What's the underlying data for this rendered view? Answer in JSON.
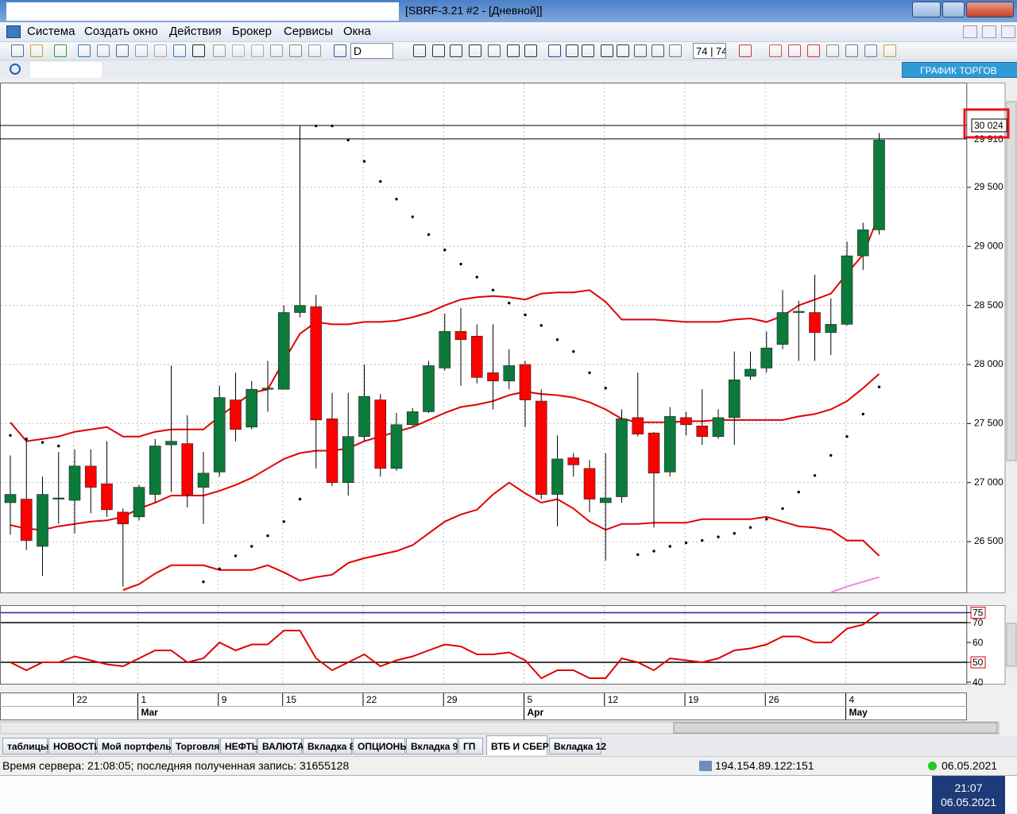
{
  "window": {
    "title": "[SBRF-3.21 #2 - [Дневной]]"
  },
  "menu": [
    "Система",
    "Создать окно",
    "Действия",
    "Брокер",
    "Сервисы",
    "Окна"
  ],
  "toolbar": {
    "interval": "D",
    "counter": "74 | 74"
  },
  "search_button": "ГРАФИК ТОРГОВ",
  "tabs": [
    "таблицы",
    "НОВОСТИ",
    "Мой портфель",
    "Торговля",
    "НЕФТЬ",
    "ВАЛЮТА",
    "Вкладка 8",
    "ОПЦИОНЫ",
    "Вкладка 9",
    "ГП",
    "ВТБ И СБЕР",
    "Вкладка 12"
  ],
  "active_tab": 10,
  "status": {
    "server": "Время сервера: 21:08:05; последняя полученная запись: 31655128",
    "address": "194.154.89.122:151",
    "date": "06.05.2021"
  },
  "taskbar": {
    "time": "21:07",
    "date": "06.05.2021"
  },
  "chart_data": [
    {
      "type": "candlestick",
      "categories": [
        null,
        null,
        null,
        null,
        "22",
        null,
        null,
        null,
        "1",
        null,
        null,
        null,
        null,
        "9",
        null,
        null,
        null,
        "15",
        null,
        null,
        null,
        null,
        "22",
        null,
        null,
        null,
        null,
        "29",
        null,
        null,
        null,
        null,
        "5",
        null,
        null,
        null,
        null,
        "12",
        null,
        null,
        null,
        null,
        "19",
        null,
        null,
        null,
        null,
        "26",
        null,
        null,
        null,
        null,
        "4",
        null,
        null
      ],
      "months": [
        null,
        null,
        null,
        null,
        null,
        null,
        null,
        null,
        "Mar",
        null,
        null,
        null,
        null,
        null,
        null,
        null,
        null,
        null,
        null,
        null,
        null,
        null,
        null,
        null,
        null,
        null,
        null,
        null,
        null,
        null,
        null,
        null,
        "Apr",
        null,
        null,
        null,
        null,
        null,
        null,
        null,
        null,
        null,
        null,
        null,
        null,
        null,
        null,
        null,
        null,
        null,
        null,
        null,
        "May",
        null,
        null
      ],
      "open": [
        26830,
        26860,
        26460,
        26860,
        26850,
        27140,
        26990,
        26750,
        26710,
        26900,
        27320,
        27330,
        26960,
        27090,
        27700,
        27470,
        27790,
        27790,
        28440,
        28490,
        27540,
        27000,
        27390,
        27700,
        27120,
        27490,
        27600,
        27970,
        28280,
        28240,
        27930,
        27860,
        28000,
        27690,
        26900,
        27210,
        27120,
        26830,
        26880,
        27550,
        27420,
        27090,
        27550,
        27480,
        27390,
        27550,
        27900,
        27970,
        28170,
        28440,
        28440,
        28270,
        28340,
        28920,
        29140
      ],
      "high": [
        27230,
        27370,
        27050,
        27260,
        27280,
        27280,
        27350,
        26780,
        26980,
        27370,
        27990,
        27570,
        27260,
        27820,
        27930,
        27860,
        28030,
        28500,
        30020,
        28590,
        27760,
        27760,
        28000,
        27750,
        27590,
        27630,
        28030,
        28430,
        28480,
        28340,
        28340,
        28130,
        28030,
        27790,
        27400,
        27250,
        27190,
        27250,
        27620,
        27930,
        27430,
        27640,
        27600,
        27790,
        27620,
        28110,
        28110,
        28280,
        28630,
        28540,
        28760,
        28560,
        29040,
        29200,
        29960
      ],
      "low": [
        26560,
        26430,
        26210,
        26650,
        26570,
        26740,
        26710,
        26120,
        26680,
        26830,
        26920,
        26790,
        26650,
        27050,
        27350,
        27450,
        27600,
        27790,
        28400,
        27120,
        26970,
        26890,
        27350,
        27050,
        27100,
        27480,
        27590,
        27950,
        27820,
        27840,
        27620,
        27790,
        27470,
        26860,
        26630,
        27050,
        26750,
        26340,
        26830,
        27390,
        26620,
        27050,
        27400,
        27320,
        27370,
        27320,
        27870,
        27930,
        28130,
        28030,
        28030,
        28080,
        28330,
        28800,
        29100
      ],
      "close": [
        26900,
        26510,
        26900,
        26870,
        27140,
        26960,
        26770,
        26650,
        26960,
        27310,
        27350,
        26900,
        27080,
        27720,
        27450,
        27790,
        27800,
        28440,
        28500,
        27530,
        27000,
        27390,
        27730,
        27120,
        27490,
        27600,
        27990,
        28280,
        28210,
        27890,
        27860,
        27990,
        27700,
        26900,
        27200,
        27150,
        26860,
        26870,
        27540,
        27410,
        27080,
        27560,
        27490,
        27390,
        27550,
        27870,
        27960,
        28140,
        28440,
        28450,
        28270,
        28340,
        28920,
        29140,
        29900
      ],
      "up_color": "#0b7a3a",
      "down_color": "#ff0000",
      "ylim": [
        26070,
        30380
      ],
      "yticks": [
        {
          "value": 26500,
          "label": "26 500"
        },
        {
          "value": 27000,
          "label": "27 000"
        },
        {
          "value": 27500,
          "label": "27 500"
        },
        {
          "value": 28000,
          "label": "28 000"
        },
        {
          "value": 28500,
          "label": "28 500"
        },
        {
          "value": 29000,
          "label": "29 000"
        },
        {
          "value": 29500,
          "label": "29 500"
        }
      ],
      "grid": true,
      "overlays": [
        {
          "style": "line",
          "color": "#e00000",
          "values": [
            27510,
            27350,
            27370,
            27390,
            27430,
            27450,
            27470,
            27390,
            27390,
            27430,
            27450,
            27450,
            27450,
            27560,
            27660,
            27760,
            27790,
            28030,
            28260,
            28360,
            28340,
            28340,
            28360,
            28360,
            28370,
            28400,
            28440,
            28500,
            28550,
            28570,
            28580,
            28570,
            28550,
            28600,
            28610,
            28610,
            28630,
            28530,
            28380,
            28380,
            28380,
            28370,
            28360,
            28360,
            28360,
            28380,
            28390,
            28360,
            28410,
            28500,
            28550,
            28600,
            28770,
            28930,
            29270
          ]
        },
        {
          "style": "line",
          "color": "#e00000",
          "values": [
            26640,
            26610,
            26600,
            26630,
            26650,
            26670,
            26680,
            26710,
            26780,
            26830,
            26890,
            26890,
            26890,
            26930,
            26980,
            27040,
            27120,
            27200,
            27250,
            27270,
            27270,
            27290,
            27350,
            27390,
            27430,
            27470,
            27530,
            27590,
            27640,
            27660,
            27690,
            27740,
            27770,
            27750,
            27740,
            27720,
            27680,
            27620,
            27540,
            27510,
            27510,
            27510,
            27520,
            27520,
            27530,
            27530,
            27530,
            27530,
            27530,
            27560,
            27580,
            27620,
            27690,
            27800,
            27920
          ]
        },
        {
          "style": "line",
          "color": "#e00000",
          "values": [
            null,
            null,
            null,
            null,
            null,
            null,
            null,
            26090,
            26140,
            26230,
            26300,
            26300,
            26300,
            26260,
            26260,
            26260,
            26300,
            26240,
            26170,
            26200,
            26220,
            26320,
            26360,
            26390,
            26420,
            26470,
            26570,
            26670,
            26730,
            26770,
            26900,
            27000,
            26910,
            26830,
            26860,
            26780,
            26670,
            26600,
            26650,
            26650,
            26660,
            26660,
            26660,
            26690,
            26690,
            26690,
            26690,
            26710,
            26670,
            26630,
            26620,
            26600,
            26510,
            26510,
            26380
          ]
        },
        {
          "style": "line",
          "color": "#ee82ee",
          "values": [
            null,
            null,
            null,
            null,
            null,
            null,
            null,
            null,
            null,
            null,
            null,
            null,
            null,
            null,
            null,
            null,
            null,
            null,
            null,
            null,
            null,
            null,
            null,
            null,
            null,
            null,
            null,
            null,
            null,
            null,
            null,
            null,
            null,
            null,
            null,
            null,
            null,
            null,
            null,
            null,
            null,
            null,
            null,
            null,
            null,
            null,
            null,
            null,
            null,
            null,
            null,
            26070,
            26120,
            26160,
            26200
          ]
        },
        {
          "style": "dots",
          "color": "#000000",
          "values": [
            27400,
            27370,
            27340,
            27310,
            null,
            null,
            null,
            null,
            null,
            null,
            null,
            null,
            26160,
            26270,
            26380,
            26460,
            26550,
            26670,
            26860,
            30020,
            30020,
            29900,
            29720,
            29550,
            29400,
            29250,
            29100,
            28970,
            28850,
            28740,
            28630,
            28520,
            28420,
            28330,
            28210,
            28110,
            27930,
            27800,
            null,
            26390,
            26420,
            26460,
            26490,
            26510,
            26540,
            26570,
            26620,
            26690,
            26780,
            26920,
            27060,
            27230,
            27390,
            27580,
            27810
          ]
        }
      ],
      "price_lines": [
        {
          "value": 29910,
          "label": "29 910",
          "boxed": false
        },
        {
          "value": 30024,
          "label": "30 024",
          "boxed": true
        }
      ]
    },
    {
      "type": "line",
      "values": [
        50,
        46,
        50,
        50,
        53,
        51,
        49,
        48,
        52,
        56,
        56,
        50,
        52,
        60,
        56,
        59,
        59,
        66,
        66,
        52,
        46,
        50,
        54,
        48,
        51,
        53,
        56,
        59,
        58,
        54,
        54,
        55,
        51,
        42,
        46,
        46,
        42,
        42,
        52,
        50,
        46,
        52,
        51,
        50,
        52,
        56,
        57,
        59,
        63,
        63,
        60,
        60,
        67,
        69,
        75
      ],
      "color": "#e00000",
      "ylim": [
        39.2,
        78.4
      ],
      "yticks": [
        40,
        50,
        60,
        70,
        75
      ],
      "levels": [
        {
          "value": 75,
          "color": "#2222aa",
          "boxed": true
        },
        {
          "value": 70,
          "color": "#000000",
          "boxed": false
        },
        {
          "value": 50,
          "color": "#000000",
          "boxed": true
        }
      ]
    }
  ]
}
